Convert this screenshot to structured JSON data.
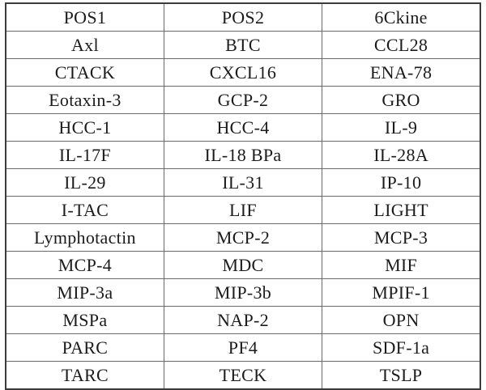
{
  "table": {
    "column_count": 3,
    "row_count": 14,
    "rows": [
      [
        "POS1",
        "POS2",
        "6Ckine"
      ],
      [
        "Axl",
        "BTC",
        "CCL28"
      ],
      [
        "CTACK",
        "CXCL16",
        "ENA-78"
      ],
      [
        "Eotaxin-3",
        "GCP-2",
        "GRO"
      ],
      [
        "HCC-1",
        "HCC-4",
        "IL-9"
      ],
      [
        "IL-17F",
        "IL-18 BPa",
        "IL-28A"
      ],
      [
        "IL-29",
        "IL-31",
        "IP-10"
      ],
      [
        "I-TAC",
        "LIF",
        "LIGHT"
      ],
      [
        "Lymphotactin",
        "MCP-2",
        "MCP-3"
      ],
      [
        "MCP-4",
        "MDC",
        "MIF"
      ],
      [
        "MIP-3a",
        "MIP-3b",
        "MPIF-1"
      ],
      [
        "MSPa",
        "NAP-2",
        "OPN"
      ],
      [
        "PARC",
        "PF4",
        "SDF-1a"
      ],
      [
        "TARC",
        "TECK",
        "TSLP"
      ]
    ]
  },
  "colors": {
    "background": "#ffffff",
    "text": "#1b1b1b",
    "border_outer": "#3b3b3b",
    "border_inner": "#6b6b6b"
  }
}
